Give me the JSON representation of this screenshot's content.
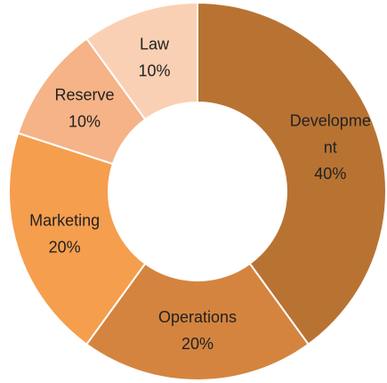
{
  "chart_data": {
    "type": "donut",
    "categories": [
      "Development",
      "Operations",
      "Marketing",
      "Reserve",
      "Law"
    ],
    "values": [
      40,
      20,
      20,
      10,
      10
    ],
    "value_labels": [
      "40%",
      "20%",
      "20%",
      "10%",
      "10%"
    ],
    "colors": [
      "#b87333",
      "#d4843f",
      "#f59e4e",
      "#f5b387",
      "#f9d0b4"
    ]
  }
}
